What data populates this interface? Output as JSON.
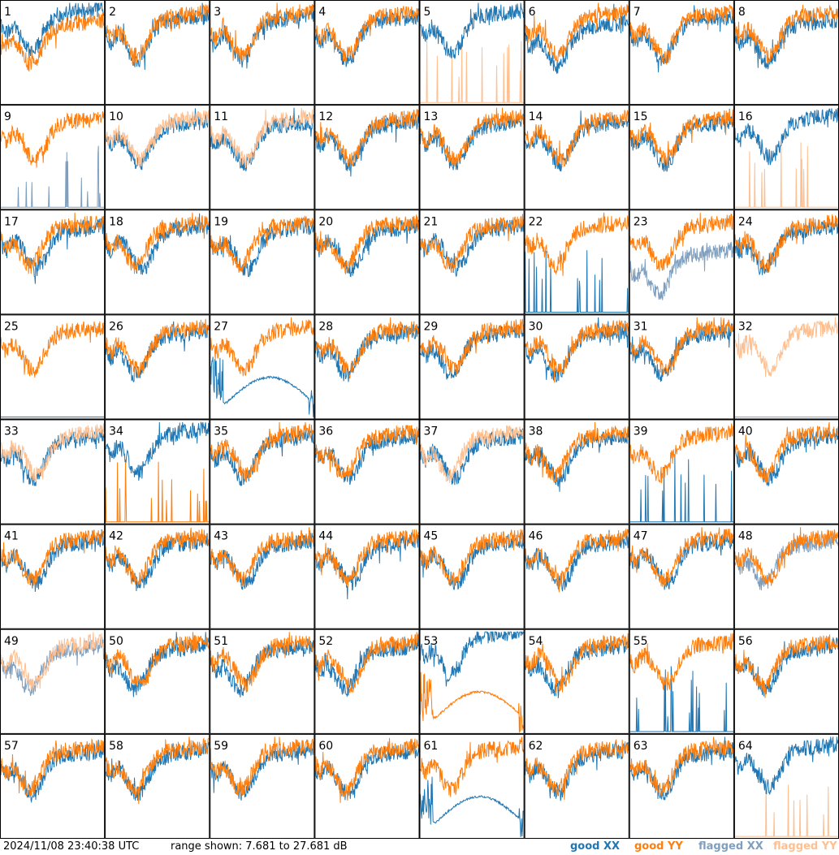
{
  "chart_data": {
    "type": "line",
    "grid": {
      "rows": 8,
      "cols": 8
    },
    "timestamp": "2024/11/08 23:40:38 UTC",
    "range_text": "range shown: 7.681 to 27.681 dB",
    "ylim": [
      7.681,
      27.681
    ],
    "legend": [
      {
        "key": "good_xx",
        "prefix": "good",
        "pol": "XX",
        "color": "#1f77b4"
      },
      {
        "key": "good_yy",
        "prefix": "good",
        "pol": "YY",
        "color": "#ff7f0e"
      },
      {
        "key": "flag_xx",
        "prefix": "flagged",
        "pol": "XX",
        "color": "#7f9fbf"
      },
      {
        "key": "flag_yy",
        "prefix": "flagged",
        "pol": "YY",
        "color": "#ffbf8f"
      }
    ],
    "panels": [
      {
        "label": "1",
        "xx": "good_xx",
        "yy": "good_yy",
        "style": "p1"
      },
      {
        "label": "2",
        "xx": "good_xx",
        "yy": "good_yy",
        "style": "normal"
      },
      {
        "label": "3",
        "xx": "good_xx",
        "yy": "good_yy",
        "style": "normal"
      },
      {
        "label": "4",
        "xx": "good_xx",
        "yy": "good_yy",
        "style": "normal"
      },
      {
        "label": "5",
        "xx": "good_xx",
        "yy": "flag_yy",
        "style": "yy_spikes"
      },
      {
        "label": "6",
        "xx": "good_xx",
        "yy": "good_yy",
        "style": "p6"
      },
      {
        "label": "7",
        "xx": "good_xx",
        "yy": "good_yy",
        "style": "normal"
      },
      {
        "label": "8",
        "xx": "good_xx",
        "yy": "good_yy",
        "style": "p8"
      },
      {
        "label": "9",
        "xx": "flag_xx",
        "yy": "good_yy",
        "style": "xx_spikes"
      },
      {
        "label": "10",
        "xx": "good_xx",
        "yy": "flag_yy",
        "style": "normal"
      },
      {
        "label": "11",
        "xx": "good_xx",
        "yy": "flag_yy",
        "style": "normal"
      },
      {
        "label": "12",
        "xx": "good_xx",
        "yy": "good_yy",
        "style": "normal"
      },
      {
        "label": "13",
        "xx": "good_xx",
        "yy": "good_yy",
        "style": "normal"
      },
      {
        "label": "14",
        "xx": "good_xx",
        "yy": "good_yy",
        "style": "normal"
      },
      {
        "label": "15",
        "xx": "good_xx",
        "yy": "good_yy",
        "style": "normal"
      },
      {
        "label": "16",
        "xx": "good_xx",
        "yy": "flag_yy",
        "style": "yy_spikes"
      },
      {
        "label": "17",
        "xx": "good_xx",
        "yy": "good_yy",
        "style": "normal"
      },
      {
        "label": "18",
        "xx": "good_xx",
        "yy": "good_yy",
        "style": "normal"
      },
      {
        "label": "19",
        "xx": "good_xx",
        "yy": "good_yy",
        "style": "normal"
      },
      {
        "label": "20",
        "xx": "good_xx",
        "yy": "good_yy",
        "style": "normal"
      },
      {
        "label": "21",
        "xx": "good_xx",
        "yy": "good_yy",
        "style": "normal"
      },
      {
        "label": "22",
        "xx": "good_xx",
        "yy": "good_yy",
        "style": "xx_spikes"
      },
      {
        "label": "23",
        "xx": "flag_xx",
        "yy": "good_yy",
        "style": "p23"
      },
      {
        "label": "24",
        "xx": "good_xx",
        "yy": "good_yy",
        "style": "normal"
      },
      {
        "label": "25",
        "xx": "good_xx",
        "yy": "good_yy",
        "style": "xx_flat"
      },
      {
        "label": "26",
        "xx": "good_xx",
        "yy": "good_yy",
        "style": "normal"
      },
      {
        "label": "27",
        "xx": "good_xx",
        "yy": "good_yy",
        "style": "p27"
      },
      {
        "label": "28",
        "xx": "good_xx",
        "yy": "good_yy",
        "style": "normal"
      },
      {
        "label": "29",
        "xx": "good_xx",
        "yy": "good_yy",
        "style": "normal"
      },
      {
        "label": "30",
        "xx": "good_xx",
        "yy": "good_yy",
        "style": "normal"
      },
      {
        "label": "31",
        "xx": "good_xx",
        "yy": "good_yy",
        "style": "normal"
      },
      {
        "label": "32",
        "xx": "flag_xx",
        "yy": "flag_yy",
        "style": "xx_flat"
      },
      {
        "label": "33",
        "xx": "good_xx",
        "yy": "flag_yy",
        "style": "normal"
      },
      {
        "label": "34",
        "xx": "good_xx",
        "yy": "good_yy",
        "style": "yy_spikes"
      },
      {
        "label": "35",
        "xx": "good_xx",
        "yy": "good_yy",
        "style": "normal"
      },
      {
        "label": "36",
        "xx": "good_xx",
        "yy": "good_yy",
        "style": "normal"
      },
      {
        "label": "37",
        "xx": "good_xx",
        "yy": "flag_yy",
        "style": "normal"
      },
      {
        "label": "38",
        "xx": "good_xx",
        "yy": "good_yy",
        "style": "normal"
      },
      {
        "label": "39",
        "xx": "good_xx",
        "yy": "good_yy",
        "style": "xx_spikes"
      },
      {
        "label": "40",
        "xx": "good_xx",
        "yy": "good_yy",
        "style": "normal"
      },
      {
        "label": "41",
        "xx": "good_xx",
        "yy": "good_yy",
        "style": "normal"
      },
      {
        "label": "42",
        "xx": "good_xx",
        "yy": "good_yy",
        "style": "normal"
      },
      {
        "label": "43",
        "xx": "good_xx",
        "yy": "good_yy",
        "style": "normal"
      },
      {
        "label": "44",
        "xx": "good_xx",
        "yy": "good_yy",
        "style": "normal"
      },
      {
        "label": "45",
        "xx": "good_xx",
        "yy": "good_yy",
        "style": "normal"
      },
      {
        "label": "46",
        "xx": "good_xx",
        "yy": "good_yy",
        "style": "normal"
      },
      {
        "label": "47",
        "xx": "good_xx",
        "yy": "good_yy",
        "style": "normal"
      },
      {
        "label": "48",
        "xx": "flag_xx",
        "yy": "good_yy",
        "style": "normal"
      },
      {
        "label": "49",
        "xx": "flag_xx",
        "yy": "flag_yy",
        "style": "normal"
      },
      {
        "label": "50",
        "xx": "good_xx",
        "yy": "good_yy",
        "style": "normal"
      },
      {
        "label": "51",
        "xx": "good_xx",
        "yy": "good_yy",
        "style": "normal"
      },
      {
        "label": "52",
        "xx": "good_xx",
        "yy": "good_yy",
        "style": "normal"
      },
      {
        "label": "53",
        "xx": "good_xx",
        "yy": "good_yy",
        "style": "p53"
      },
      {
        "label": "54",
        "xx": "good_xx",
        "yy": "good_yy",
        "style": "normal"
      },
      {
        "label": "55",
        "xx": "good_xx",
        "yy": "good_yy",
        "style": "xx_spikes"
      },
      {
        "label": "56",
        "xx": "good_xx",
        "yy": "good_yy",
        "style": "normal"
      },
      {
        "label": "57",
        "xx": "good_xx",
        "yy": "good_yy",
        "style": "normal"
      },
      {
        "label": "58",
        "xx": "good_xx",
        "yy": "good_yy",
        "style": "normal"
      },
      {
        "label": "59",
        "xx": "good_xx",
        "yy": "good_yy",
        "style": "normal"
      },
      {
        "label": "60",
        "xx": "good_xx",
        "yy": "good_yy",
        "style": "normal"
      },
      {
        "label": "61",
        "xx": "good_xx",
        "yy": "good_yy",
        "style": "p61"
      },
      {
        "label": "62",
        "xx": "good_xx",
        "yy": "good_yy",
        "style": "normal"
      },
      {
        "label": "63",
        "xx": "good_xx",
        "yy": "good_yy",
        "style": "normal"
      },
      {
        "label": "64",
        "xx": "good_xx",
        "yy": "flag_yy",
        "style": "yy_spikes"
      }
    ]
  }
}
